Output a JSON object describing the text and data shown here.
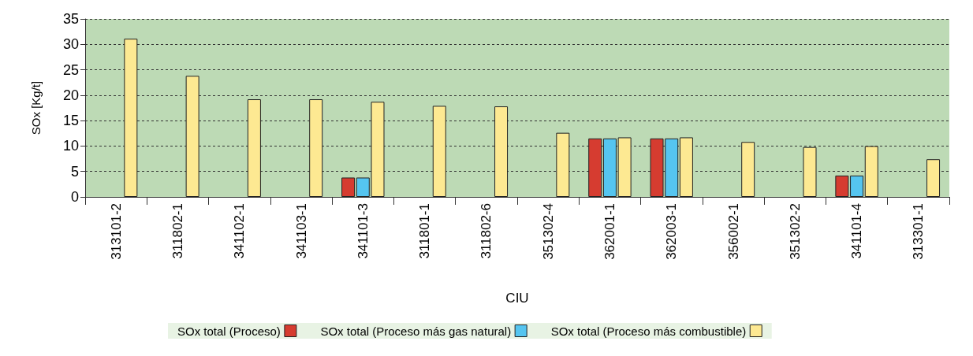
{
  "chart_data": {
    "type": "bar",
    "xlabel": "CIU",
    "ylabel": "SOx [Kg/t]",
    "categories": [
      "313101-2",
      "311802-1",
      "341102-1",
      "341103-1",
      "341101-3",
      "311801-1",
      "311802-6",
      "351302-4",
      "362001-1",
      "362003-1",
      "356002-1",
      "351302-2",
      "341101-4",
      "313301-1"
    ],
    "series": [
      {
        "name": "SOx total (Proceso)",
        "color": "#d63c30",
        "values": [
          null,
          null,
          null,
          null,
          3.8,
          null,
          null,
          null,
          11.5,
          11.5,
          null,
          null,
          4.2,
          null
        ]
      },
      {
        "name": "SOx total (Proceso más gas natural)",
        "color": "#55c5f0",
        "values": [
          null,
          null,
          null,
          null,
          3.8,
          null,
          null,
          null,
          11.5,
          11.5,
          null,
          null,
          4.2,
          null
        ]
      },
      {
        "name": "SOx total (Proceso más combustible)",
        "color": "#fde992",
        "values": [
          31.1,
          23.8,
          19.2,
          19.2,
          18.7,
          17.9,
          17.8,
          12.6,
          11.7,
          11.7,
          10.8,
          9.8,
          10.0,
          7.4
        ]
      }
    ],
    "ylim": [
      0,
      35
    ],
    "yticks": [
      0,
      5,
      10,
      15,
      20,
      25,
      30,
      35
    ],
    "grid": "y",
    "legend": "bottom"
  }
}
